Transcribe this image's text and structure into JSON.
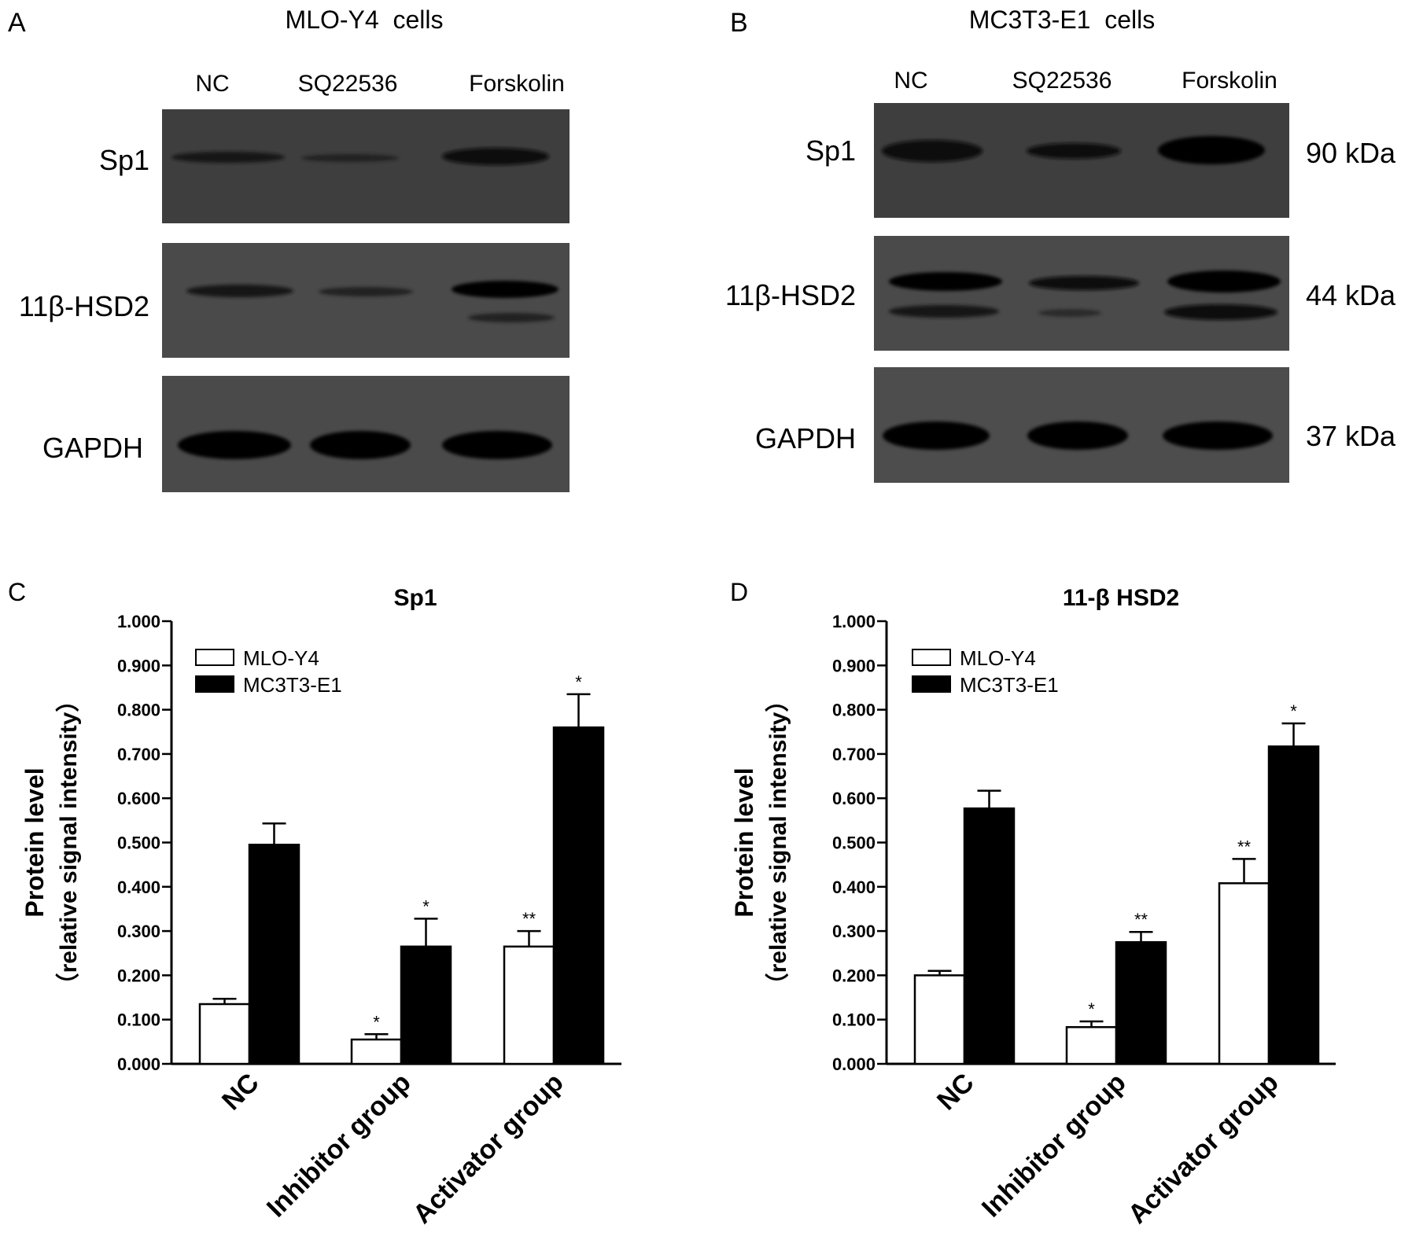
{
  "panels": {
    "A": {
      "letter": "A",
      "title": "MLO-Y4  cells",
      "lanes": [
        "NC",
        "SQ22536",
        "Forskolin"
      ],
      "rows": [
        "Sp1",
        "11β-HSD2",
        "GAPDH"
      ]
    },
    "B": {
      "letter": "B",
      "title": "MC3T3-E1  cells",
      "lanes": [
        "NC",
        "SQ22536",
        "Forskolin"
      ],
      "rows": [
        "Sp1",
        "11β-HSD2",
        "GAPDH"
      ],
      "sizes": [
        "90 kDa",
        "44 kDa",
        "37 kDa"
      ]
    }
  },
  "chart_data": [
    {
      "panel": "C",
      "type": "bar",
      "title": "Sp1",
      "ylabel_line1": "Protein level",
      "ylabel_line2": "（relative signal intensity）",
      "xlabel": "",
      "ylim": [
        0,
        1
      ],
      "yticks": [
        "0.000",
        "0.100",
        "0.200",
        "0.300",
        "0.400",
        "0.500",
        "0.600",
        "0.700",
        "0.800",
        "0.900",
        "1.000"
      ],
      "categories": [
        "NC",
        "Inhibitor group",
        "Activator group"
      ],
      "legend_position": "top-left",
      "series": [
        {
          "name": "MLO-Y4",
          "color": "#ffffff",
          "values": [
            0.135,
            0.055,
            0.265
          ],
          "errors": [
            0.012,
            0.012,
            0.035
          ],
          "marks": [
            "",
            "*",
            "**"
          ]
        },
        {
          "name": "MC3T3-E1",
          "color": "#000000",
          "values": [
            0.495,
            0.265,
            0.76
          ],
          "errors": [
            0.048,
            0.063,
            0.075
          ],
          "marks": [
            "",
            "*",
            "*"
          ]
        }
      ]
    },
    {
      "panel": "D",
      "type": "bar",
      "title": "11-β HSD2",
      "ylabel_line1": "Protein level",
      "ylabel_line2": "（relative signal intensity）",
      "xlabel": "",
      "ylim": [
        0,
        1
      ],
      "yticks": [
        "0.000",
        "0.100",
        "0.200",
        "0.300",
        "0.400",
        "0.500",
        "0.600",
        "0.700",
        "0.800",
        "0.900",
        "1.000"
      ],
      "categories": [
        "NC",
        "Inhibitor group",
        "Activator group"
      ],
      "legend_position": "top-left",
      "series": [
        {
          "name": "MLO-Y4",
          "color": "#ffffff",
          "values": [
            0.2,
            0.083,
            0.408
          ],
          "errors": [
            0.01,
            0.013,
            0.055
          ],
          "marks": [
            "",
            "*",
            "**"
          ]
        },
        {
          "name": "MC3T3-E1",
          "color": "#000000",
          "values": [
            0.577,
            0.275,
            0.717
          ],
          "errors": [
            0.04,
            0.023,
            0.052
          ],
          "marks": [
            "",
            "**",
            "*"
          ]
        }
      ]
    }
  ]
}
